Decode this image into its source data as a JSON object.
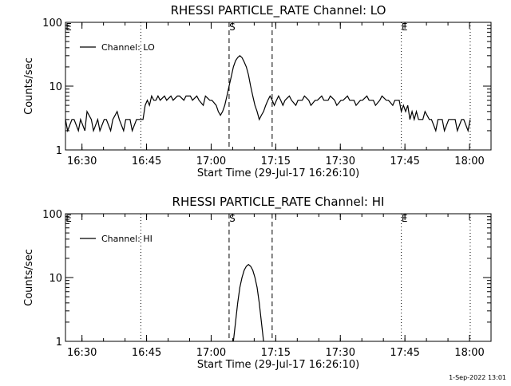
{
  "chart_data": [
    {
      "type": "line",
      "title": "RHESSI PARTICLE_RATE Channel: LO",
      "xlabel": "Start Time (29-Jul-17 16:26:10)",
      "ylabel": "Counts/sec",
      "y_scale": "log",
      "ylim": [
        1,
        100
      ],
      "ytick_labels": [
        "1",
        "10",
        "100"
      ],
      "xlim": [
        "16:26:10",
        "18:05:00"
      ],
      "xtick_labels": [
        "16:30",
        "16:45",
        "17:00",
        "17:15",
        "17:30",
        "17:45",
        "18:00"
      ],
      "legend": {
        "position": "top-left",
        "entries": [
          "Channel: LO"
        ]
      },
      "series": [
        {
          "name": "Channel: LO",
          "style": "solid",
          "x": [
            "16:26:10",
            "16:26:40",
            "16:27:40",
            "16:28:10",
            "16:29:10",
            "16:29:40",
            "16:30:40",
            "16:31:10",
            "16:32:10",
            "16:32:40",
            "16:33:40",
            "16:34:10",
            "16:35:10",
            "16:35:40",
            "16:36:40",
            "16:37:10",
            "16:38:10",
            "16:38:40",
            "16:39:40",
            "16:40:10",
            "16:41:10",
            "16:41:40",
            "16:42:40",
            "16:43:10",
            "16:43:40",
            "16:44:10",
            "16:44:40",
            "16:45:10",
            "16:45:40",
            "16:46:10",
            "16:46:40",
            "16:47:10",
            "16:47:40",
            "16:48:10",
            "16:49:10",
            "16:49:40",
            "16:50:40",
            "16:51:10",
            "16:52:10",
            "16:52:40",
            "16:53:40",
            "16:54:10",
            "16:55:10",
            "16:55:40",
            "16:56:40",
            "16:57:10",
            "16:58:10",
            "16:58:40",
            "16:59:40",
            "17:00:10",
            "17:01:10",
            "17:01:40",
            "17:02:10",
            "17:02:40",
            "17:03:10",
            "17:03:40",
            "17:04:10",
            "17:04:40",
            "17:05:10",
            "17:05:40",
            "17:06:10",
            "17:06:40",
            "17:07:10",
            "17:07:40",
            "17:08:10",
            "17:08:40",
            "17:09:10",
            "17:09:40",
            "17:10:10",
            "17:10:40",
            "17:11:10",
            "17:11:40",
            "17:12:10",
            "17:12:40",
            "17:13:10",
            "17:13:40",
            "17:14:10",
            "17:14:40",
            "17:15:10",
            "17:15:40",
            "17:16:10",
            "17:16:40",
            "17:17:10",
            "17:18:10",
            "17:18:40",
            "17:19:40",
            "17:20:10",
            "17:21:10",
            "17:21:40",
            "17:22:40",
            "17:23:10",
            "17:24:10",
            "17:24:40",
            "17:25:40",
            "17:26:10",
            "17:27:10",
            "17:27:40",
            "17:28:40",
            "17:29:10",
            "17:30:10",
            "17:30:40",
            "17:31:40",
            "17:32:10",
            "17:33:10",
            "17:33:40",
            "17:34:40",
            "17:35:10",
            "17:36:10",
            "17:36:40",
            "17:37:40",
            "17:38:10",
            "17:39:10",
            "17:39:40",
            "17:40:40",
            "17:41:10",
            "17:42:10",
            "17:42:40",
            "17:43:40",
            "17:44:10",
            "17:44:40",
            "17:45:10",
            "17:45:40",
            "17:46:10",
            "17:46:40",
            "17:47:10",
            "17:47:40",
            "17:48:10",
            "17:49:10",
            "17:49:40",
            "17:50:40",
            "17:51:10",
            "17:52:10",
            "17:52:40",
            "17:53:40",
            "17:54:10",
            "17:55:10",
            "17:55:40",
            "17:56:40",
            "17:57:10",
            "17:58:10",
            "17:58:40",
            "17:59:40",
            "18:00:10"
          ],
          "y": [
            3,
            2,
            3,
            3,
            2,
            3,
            2,
            4,
            3,
            2,
            3,
            2,
            3,
            3,
            2,
            3,
            4,
            3,
            2,
            3,
            3,
            2,
            3,
            3,
            3,
            3,
            5,
            6,
            5,
            7,
            6,
            6,
            7,
            6,
            7,
            6,
            7,
            6,
            7,
            7,
            6,
            7,
            7,
            6,
            7,
            6,
            5,
            7,
            6,
            6,
            5,
            4,
            3.5,
            4,
            5,
            7,
            10,
            14,
            20,
            25,
            28,
            30,
            28,
            24,
            20,
            15,
            10,
            7,
            5,
            4,
            3,
            3.5,
            4,
            5,
            6,
            7,
            6,
            5,
            6,
            7,
            6,
            5,
            6,
            7,
            6,
            5,
            6,
            6,
            7,
            6,
            5,
            6,
            6,
            7,
            6,
            6,
            7,
            6,
            5,
            6,
            6,
            7,
            6,
            6,
            5,
            6,
            6,
            7,
            6,
            6,
            5,
            6,
            7,
            6,
            6,
            5,
            6,
            6,
            4,
            5,
            4,
            5,
            3,
            4,
            3,
            4,
            3,
            3,
            4,
            3,
            3,
            2,
            3,
            3,
            2,
            3,
            3,
            3,
            2,
            3,
            3,
            2,
            3
          ],
          "color": "#000000"
        }
      ],
      "markers": [
        {
          "label": "E",
          "time": "16:26:10",
          "style": "dotted"
        },
        {
          "label": "",
          "time": "16:43:40",
          "style": "dotted"
        },
        {
          "label": "S",
          "time": "17:04:10",
          "style": "dashed"
        },
        {
          "label": "",
          "time": "17:14:10",
          "style": "dashed"
        },
        {
          "label": "E",
          "time": "17:44:10",
          "style": "dotted"
        },
        {
          "label": "",
          "time": "18:00:10",
          "style": "dotted"
        }
      ]
    },
    {
      "type": "line",
      "title": "RHESSI PARTICLE_RATE Channel: HI",
      "xlabel": "Start Time (29-Jul-17 16:26:10)",
      "ylabel": "Counts/sec",
      "y_scale": "log",
      "ylim": [
        1,
        100
      ],
      "ytick_labels": [
        "1",
        "10",
        "100"
      ],
      "xlim": [
        "16:26:10",
        "18:05:00"
      ],
      "xtick_labels": [
        "16:30",
        "16:45",
        "17:00",
        "17:15",
        "17:30",
        "17:45",
        "18:00"
      ],
      "legend": {
        "position": "top-left",
        "entries": [
          "Channel: HI"
        ]
      },
      "series": [
        {
          "name": "Channel: HI",
          "style": "solid",
          "x": [
            "17:05:10",
            "17:05:40",
            "17:06:10",
            "17:06:40",
            "17:07:10",
            "17:07:40",
            "17:08:10",
            "17:08:40",
            "17:09:10",
            "17:09:40",
            "17:10:10",
            "17:10:40",
            "17:11:10",
            "17:11:40",
            "17:12:10"
          ],
          "y": [
            1,
            2,
            4,
            7,
            10,
            13,
            15,
            16,
            15,
            13,
            10,
            7,
            4,
            2,
            1
          ],
          "color": "#000000"
        }
      ],
      "markers": [
        {
          "label": "E",
          "time": "16:26:10",
          "style": "dotted"
        },
        {
          "label": "",
          "time": "16:43:40",
          "style": "dotted"
        },
        {
          "label": "S",
          "time": "17:04:10",
          "style": "dashed"
        },
        {
          "label": "",
          "time": "17:14:10",
          "style": "dashed"
        },
        {
          "label": "E",
          "time": "17:44:10",
          "style": "dotted"
        },
        {
          "label": "",
          "time": "18:00:10",
          "style": "dotted"
        }
      ]
    }
  ],
  "footer": {
    "timestamp": "1-Sep-2022 13:01"
  }
}
